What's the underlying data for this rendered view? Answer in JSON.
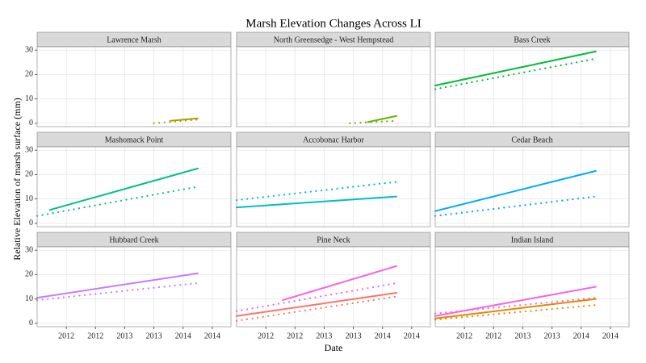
{
  "title": "Marsh Elevation Changes Across LI",
  "xlabel": "Date",
  "ylabel": "Relative Elevation of marsh surface (mm)",
  "xlim": [
    2011.5,
    2014.82
  ],
  "ylim": [
    -1.4,
    31.4
  ],
  "xticks": [
    2012,
    {
      "value": 2012.5,
      "label": "2012"
    },
    2013,
    {
      "value": 2013.5,
      "label": "2013"
    },
    2014,
    {
      "value": 2014.5,
      "label": "2014"
    }
  ],
  "yticks": [
    0,
    10,
    20,
    30
  ],
  "grid": true,
  "chart_data": [
    {
      "type": "line",
      "title": "Lawrence Marsh",
      "series": [
        {
          "color": "#a3a500",
          "dash": "solid",
          "x": [
            2013.78,
            2014.25
          ],
          "values": [
            1,
            2
          ]
        },
        {
          "color": "#a3a500",
          "dash": "dotted",
          "x": [
            2013.5,
            2014.25
          ],
          "values": [
            0,
            1.5
          ]
        }
      ]
    },
    {
      "type": "line",
      "title": "North Greensedge - West Hempstead",
      "series": [
        {
          "color": "#6bb100",
          "dash": "solid",
          "x": [
            2013.75,
            2014.24
          ],
          "values": [
            0.5,
            3
          ]
        },
        {
          "color": "#6bb100",
          "dash": "dotted",
          "x": [
            2013.44,
            2014.24
          ],
          "values": [
            0,
            1
          ]
        }
      ]
    },
    {
      "type": "line",
      "title": "Bass Creek",
      "series": [
        {
          "color": "#00ba38",
          "dash": "solid",
          "x": [
            2011.5,
            2014.25
          ],
          "values": [
            15.5,
            29.5
          ]
        },
        {
          "color": "#00ba38",
          "dash": "dotted",
          "x": [
            2011.5,
            2014.25
          ],
          "values": [
            14,
            26.5
          ]
        }
      ]
    },
    {
      "type": "line",
      "title": "Mashomack Point",
      "series": [
        {
          "color": "#00c08b",
          "dash": "solid",
          "x": [
            2011.72,
            2014.25
          ],
          "values": [
            5.5,
            22.5
          ]
        },
        {
          "color": "#00c08b",
          "dash": "dotted",
          "x": [
            2011.5,
            2014.25
          ],
          "values": [
            3,
            15
          ]
        }
      ]
    },
    {
      "type": "line",
      "title": "Accobonac Harbor",
      "series": [
        {
          "color": "#00bfc4",
          "dash": "solid",
          "x": [
            2011.5,
            2014.24
          ],
          "values": [
            6.5,
            11
          ]
        },
        {
          "color": "#00bfc4",
          "dash": "dotted",
          "x": [
            2011.5,
            2014.24
          ],
          "values": [
            9.5,
            17
          ]
        }
      ]
    },
    {
      "type": "line",
      "title": "Cedar Beach",
      "series": [
        {
          "color": "#00a9ff",
          "dash": "solid",
          "x": [
            2011.5,
            2014.25
          ],
          "values": [
            5,
            21.5
          ]
        },
        {
          "color": "#00a9ff",
          "dash": "dotted",
          "x": [
            2011.5,
            2014.25
          ],
          "values": [
            3,
            11
          ]
        }
      ]
    },
    {
      "type": "line",
      "title": "Hubbard Creek",
      "series": [
        {
          "color": "#c77cff",
          "dash": "solid",
          "x": [
            2011.5,
            2014.25
          ],
          "values": [
            10.5,
            20.5
          ]
        },
        {
          "color": "#c77cff",
          "dash": "dotted",
          "x": [
            2011.5,
            2014.25
          ],
          "values": [
            9.5,
            16.5
          ]
        }
      ]
    },
    {
      "type": "line",
      "title": "Pine Neck",
      "series": [
        {
          "color": "#f564e3",
          "dash": "solid",
          "x": [
            2012.29,
            2014.24
          ],
          "values": [
            9.5,
            23.5
          ]
        },
        {
          "color": "#f564e3",
          "dash": "dotted",
          "x": [
            2011.5,
            2014.24
          ],
          "values": [
            5,
            16.5
          ]
        },
        {
          "color": "#f8766d",
          "dash": "solid",
          "x": [
            2011.5,
            2014.24
          ],
          "values": [
            3,
            12.5
          ]
        },
        {
          "color": "#f8766d",
          "dash": "dotted",
          "x": [
            2011.5,
            2014.24
          ],
          "values": [
            1,
            11
          ]
        }
      ]
    },
    {
      "type": "line",
      "title": "Indian Island",
      "series": [
        {
          "color": "#f564e3",
          "dash": "solid",
          "x": [
            2011.5,
            2014.25
          ],
          "values": [
            3,
            15
          ]
        },
        {
          "color": "#f564e3",
          "dash": "dotted",
          "x": [
            2011.5,
            2014.25
          ],
          "values": [
            4,
            10.5
          ]
        },
        {
          "color": "#e58700",
          "dash": "solid",
          "x": [
            2011.5,
            2014.25
          ],
          "values": [
            2,
            10
          ]
        },
        {
          "color": "#e58700",
          "dash": "dotted",
          "x": [
            2011.5,
            2014.25
          ],
          "values": [
            1.5,
            7.5
          ]
        }
      ]
    }
  ]
}
